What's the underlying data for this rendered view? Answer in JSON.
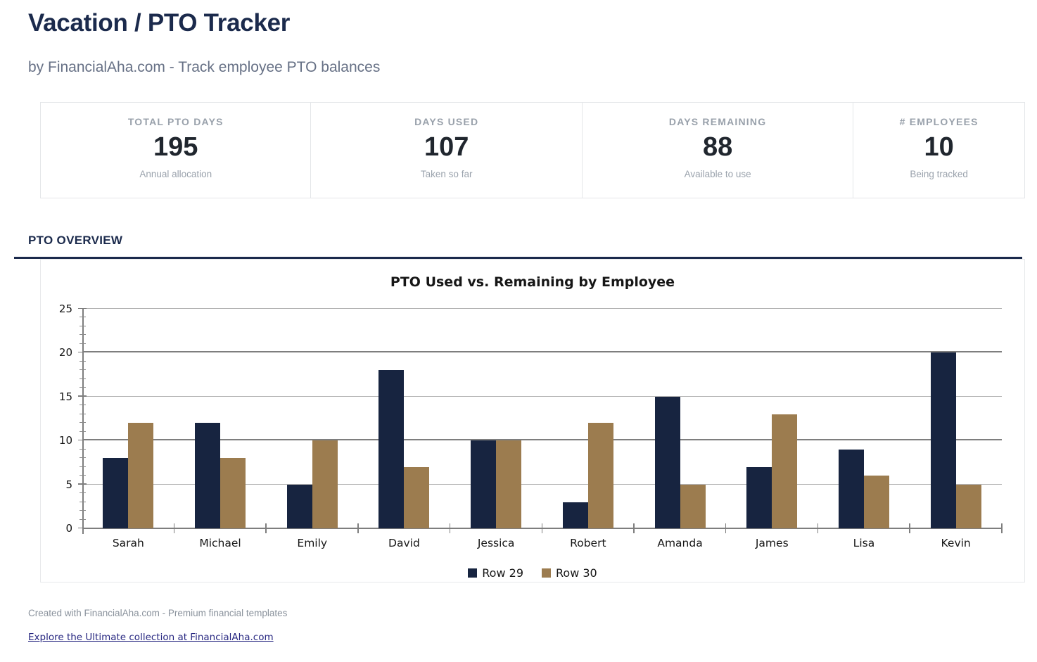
{
  "page": {
    "title": "Vacation / PTO Tracker",
    "subtitle": "by FinancialAha.com - Track employee PTO balances"
  },
  "stats": {
    "cards": [
      {
        "label": "TOTAL PTO DAYS",
        "value": "195",
        "sub": "Annual allocation"
      },
      {
        "label": "DAYS USED",
        "value": "107",
        "sub": "Taken so far"
      },
      {
        "label": "DAYS REMAINING",
        "value": "88",
        "sub": "Available to use"
      },
      {
        "label": "# EMPLOYEES",
        "value": "10",
        "sub": "Being tracked"
      }
    ]
  },
  "section": {
    "heading": "PTO OVERVIEW"
  },
  "chart_data": {
    "type": "bar",
    "title": "PTO Used vs. Remaining by Employee",
    "categories": [
      "Sarah",
      "Michael",
      "Emily",
      "David",
      "Jessica",
      "Robert",
      "Amanda",
      "James",
      "Lisa",
      "Kevin"
    ],
    "series": [
      {
        "name": "Row 29",
        "color": "#172440",
        "values": [
          8,
          12,
          5,
          18,
          10,
          3,
          15,
          7,
          9,
          20
        ]
      },
      {
        "name": "Row 30",
        "color": "#9C7C4F",
        "values": [
          12,
          8,
          10,
          7,
          10,
          12,
          5,
          13,
          6,
          5
        ]
      }
    ],
    "xlabel": "",
    "ylabel": "",
    "ylim": [
      0,
      25
    ],
    "yticks": [
      0,
      5,
      10,
      15,
      20,
      25
    ],
    "grid": true,
    "legend_position": "bottom"
  },
  "footer": {
    "credit": "Created with FinancialAha.com - Premium financial templates",
    "link": "Explore the Ultimate collection at FinancialAha.com"
  },
  "colors": {
    "accent_navy": "#1B2A4C",
    "bar_used": "#172440",
    "bar_remaining": "#9C7C4F",
    "muted_gray": "#99A1AB"
  }
}
